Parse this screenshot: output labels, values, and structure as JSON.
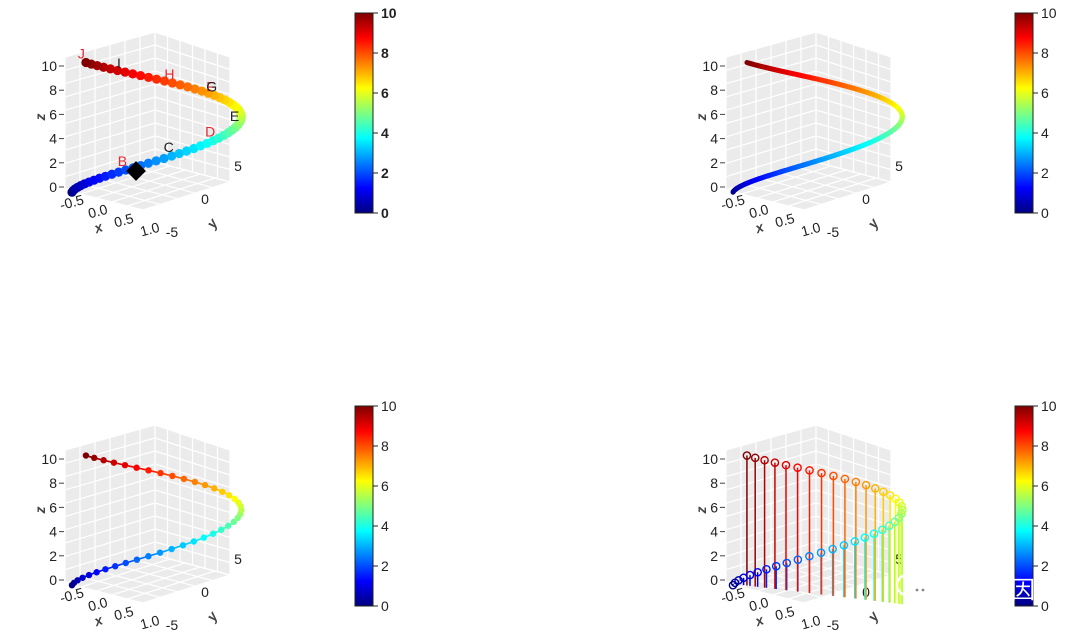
{
  "colorbar": {
    "ticks": [
      "0",
      "2",
      "4",
      "6",
      "8",
      "10"
    ],
    "colors": [
      "#00007F",
      "#0000FF",
      "#007FFF",
      "#00FFFF",
      "#7FFF7F",
      "#FFFF00",
      "#FF7F00",
      "#FF0000",
      "#7F0000"
    ]
  },
  "axes": {
    "x_label": "x",
    "y_label": "y",
    "z_label": "z",
    "x_ticks": [
      "-0.5",
      "0.0",
      "0.5",
      "1.0"
    ],
    "y_ticks": [
      "-5",
      "0",
      "5"
    ],
    "z_ticks": [
      "0",
      "2",
      "4",
      "6",
      "8",
      "10"
    ]
  },
  "chart_data": [
    {
      "type": "scatter",
      "panel": "top-left",
      "style": "points with text labels",
      "x": "sin(t)",
      "y": "cos(t)",
      "z": "t",
      "t_range": [
        0,
        10
      ],
      "zlim": [
        0,
        10
      ],
      "xlim": [
        -0.5,
        1.0
      ],
      "ylim": [
        -5,
        5
      ],
      "grid": true,
      "colorbar": "right",
      "labels": [
        {
          "text": "J",
          "z": 10,
          "color": "#e8282e"
        },
        {
          "text": "I",
          "z": 9,
          "color": "#222222"
        },
        {
          "text": "H",
          "z": 8,
          "color": "#e8282e"
        },
        {
          "text": "F",
          "z": 7,
          "color": "#e8282e"
        },
        {
          "text": "G",
          "z": 7,
          "color": "#222222"
        },
        {
          "text": "E",
          "z": 5,
          "color": "#222222"
        },
        {
          "text": "D",
          "z": 4,
          "color": "#e8282e"
        },
        {
          "text": "C",
          "z": 3,
          "color": "#222222"
        },
        {
          "text": "B",
          "z": 2,
          "color": "#e8282e"
        }
      ]
    },
    {
      "type": "line",
      "panel": "top-right",
      "style": "thick coloured line",
      "x": "sin(t)",
      "y": "cos(t)",
      "z": "t",
      "t_range": [
        0,
        10
      ],
      "zlim": [
        0,
        10
      ],
      "grid": true,
      "colorbar": "right"
    },
    {
      "type": "line",
      "panel": "bottom-left",
      "style": "line with points",
      "x": "sin(t)",
      "y": "cos(t)",
      "z": "t",
      "t_range": [
        0,
        10
      ],
      "zlim": [
        0,
        10
      ],
      "grid": true,
      "colorbar": "right"
    },
    {
      "type": "scatter",
      "panel": "bottom-right",
      "style": "open circles with vertical drop lines",
      "x": "sin(t)",
      "y": "cos(t)",
      "z": "t",
      "t_range": [
        0,
        10
      ],
      "zlim": [
        0,
        10
      ],
      "grid": true,
      "colorbar": "right"
    }
  ],
  "watermark": {
    "text": "桓峰基因",
    "icon": "wechat-icon"
  }
}
